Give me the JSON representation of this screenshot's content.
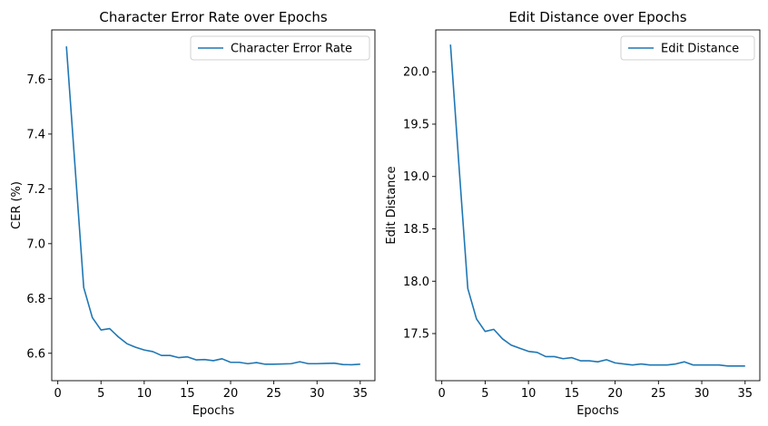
{
  "chart_data": [
    {
      "type": "line",
      "title": "Character Error Rate over Epochs",
      "xlabel": "Epochs",
      "ylabel": "CER (%)",
      "xlim": [
        -0.7,
        36.7
      ],
      "ylim": [
        6.5,
        7.78
      ],
      "xticks": [
        0,
        5,
        10,
        15,
        20,
        25,
        30,
        35
      ],
      "yticks": [
        6.6,
        6.8,
        7.0,
        7.2,
        7.4,
        7.6
      ],
      "ytick_labels": [
        "6.6",
        "6.8",
        "7.0",
        "7.2",
        "7.4",
        "7.6"
      ],
      "legend_position": "top-right",
      "color": "#1f77b4",
      "series": [
        {
          "name": "Character Error Rate",
          "x": [
            1,
            2,
            3,
            4,
            5,
            6,
            7,
            8,
            9,
            10,
            11,
            12,
            13,
            14,
            15,
            16,
            17,
            18,
            19,
            20,
            21,
            22,
            23,
            24,
            25,
            26,
            27,
            28,
            29,
            30,
            31,
            32,
            33,
            34,
            35
          ],
          "y": [
            7.72,
            7.28,
            6.84,
            6.73,
            6.685,
            6.69,
            6.66,
            6.635,
            6.622,
            6.612,
            6.606,
            6.592,
            6.592,
            6.584,
            6.587,
            6.576,
            6.577,
            6.573,
            6.58,
            6.567,
            6.567,
            6.562,
            6.566,
            6.56,
            6.56,
            6.561,
            6.562,
            6.569,
            6.562,
            6.562,
            6.563,
            6.564,
            6.559,
            6.558,
            6.56
          ]
        }
      ]
    },
    {
      "type": "line",
      "title": "Edit Distance over Epochs",
      "xlabel": "Epochs",
      "ylabel": "Edit Distance",
      "xlim": [
        -0.7,
        36.7
      ],
      "ylim": [
        17.05,
        20.4
      ],
      "xticks": [
        0,
        5,
        10,
        15,
        20,
        25,
        30,
        35
      ],
      "yticks": [
        17.5,
        18.0,
        18.5,
        19.0,
        19.5,
        20.0
      ],
      "ytick_labels": [
        "17.5",
        "18.0",
        "18.5",
        "19.0",
        "19.5",
        "20.0"
      ],
      "legend_position": "top-right",
      "color": "#1f77b4",
      "series": [
        {
          "name": "Edit Distance",
          "x": [
            1,
            2,
            3,
            4,
            5,
            6,
            7,
            8,
            9,
            10,
            11,
            12,
            13,
            14,
            15,
            16,
            17,
            18,
            19,
            20,
            21,
            22,
            23,
            24,
            25,
            26,
            27,
            28,
            29,
            30,
            31,
            32,
            33,
            34,
            35
          ],
          "y": [
            20.26,
            19.08,
            17.93,
            17.64,
            17.52,
            17.54,
            17.45,
            17.39,
            17.36,
            17.33,
            17.32,
            17.28,
            17.28,
            17.26,
            17.27,
            17.24,
            17.24,
            17.23,
            17.25,
            17.22,
            17.21,
            17.2,
            17.21,
            17.2,
            17.2,
            17.2,
            17.21,
            17.23,
            17.2,
            17.2,
            17.2,
            17.2,
            17.19,
            17.19,
            17.19
          ]
        }
      ]
    }
  ]
}
